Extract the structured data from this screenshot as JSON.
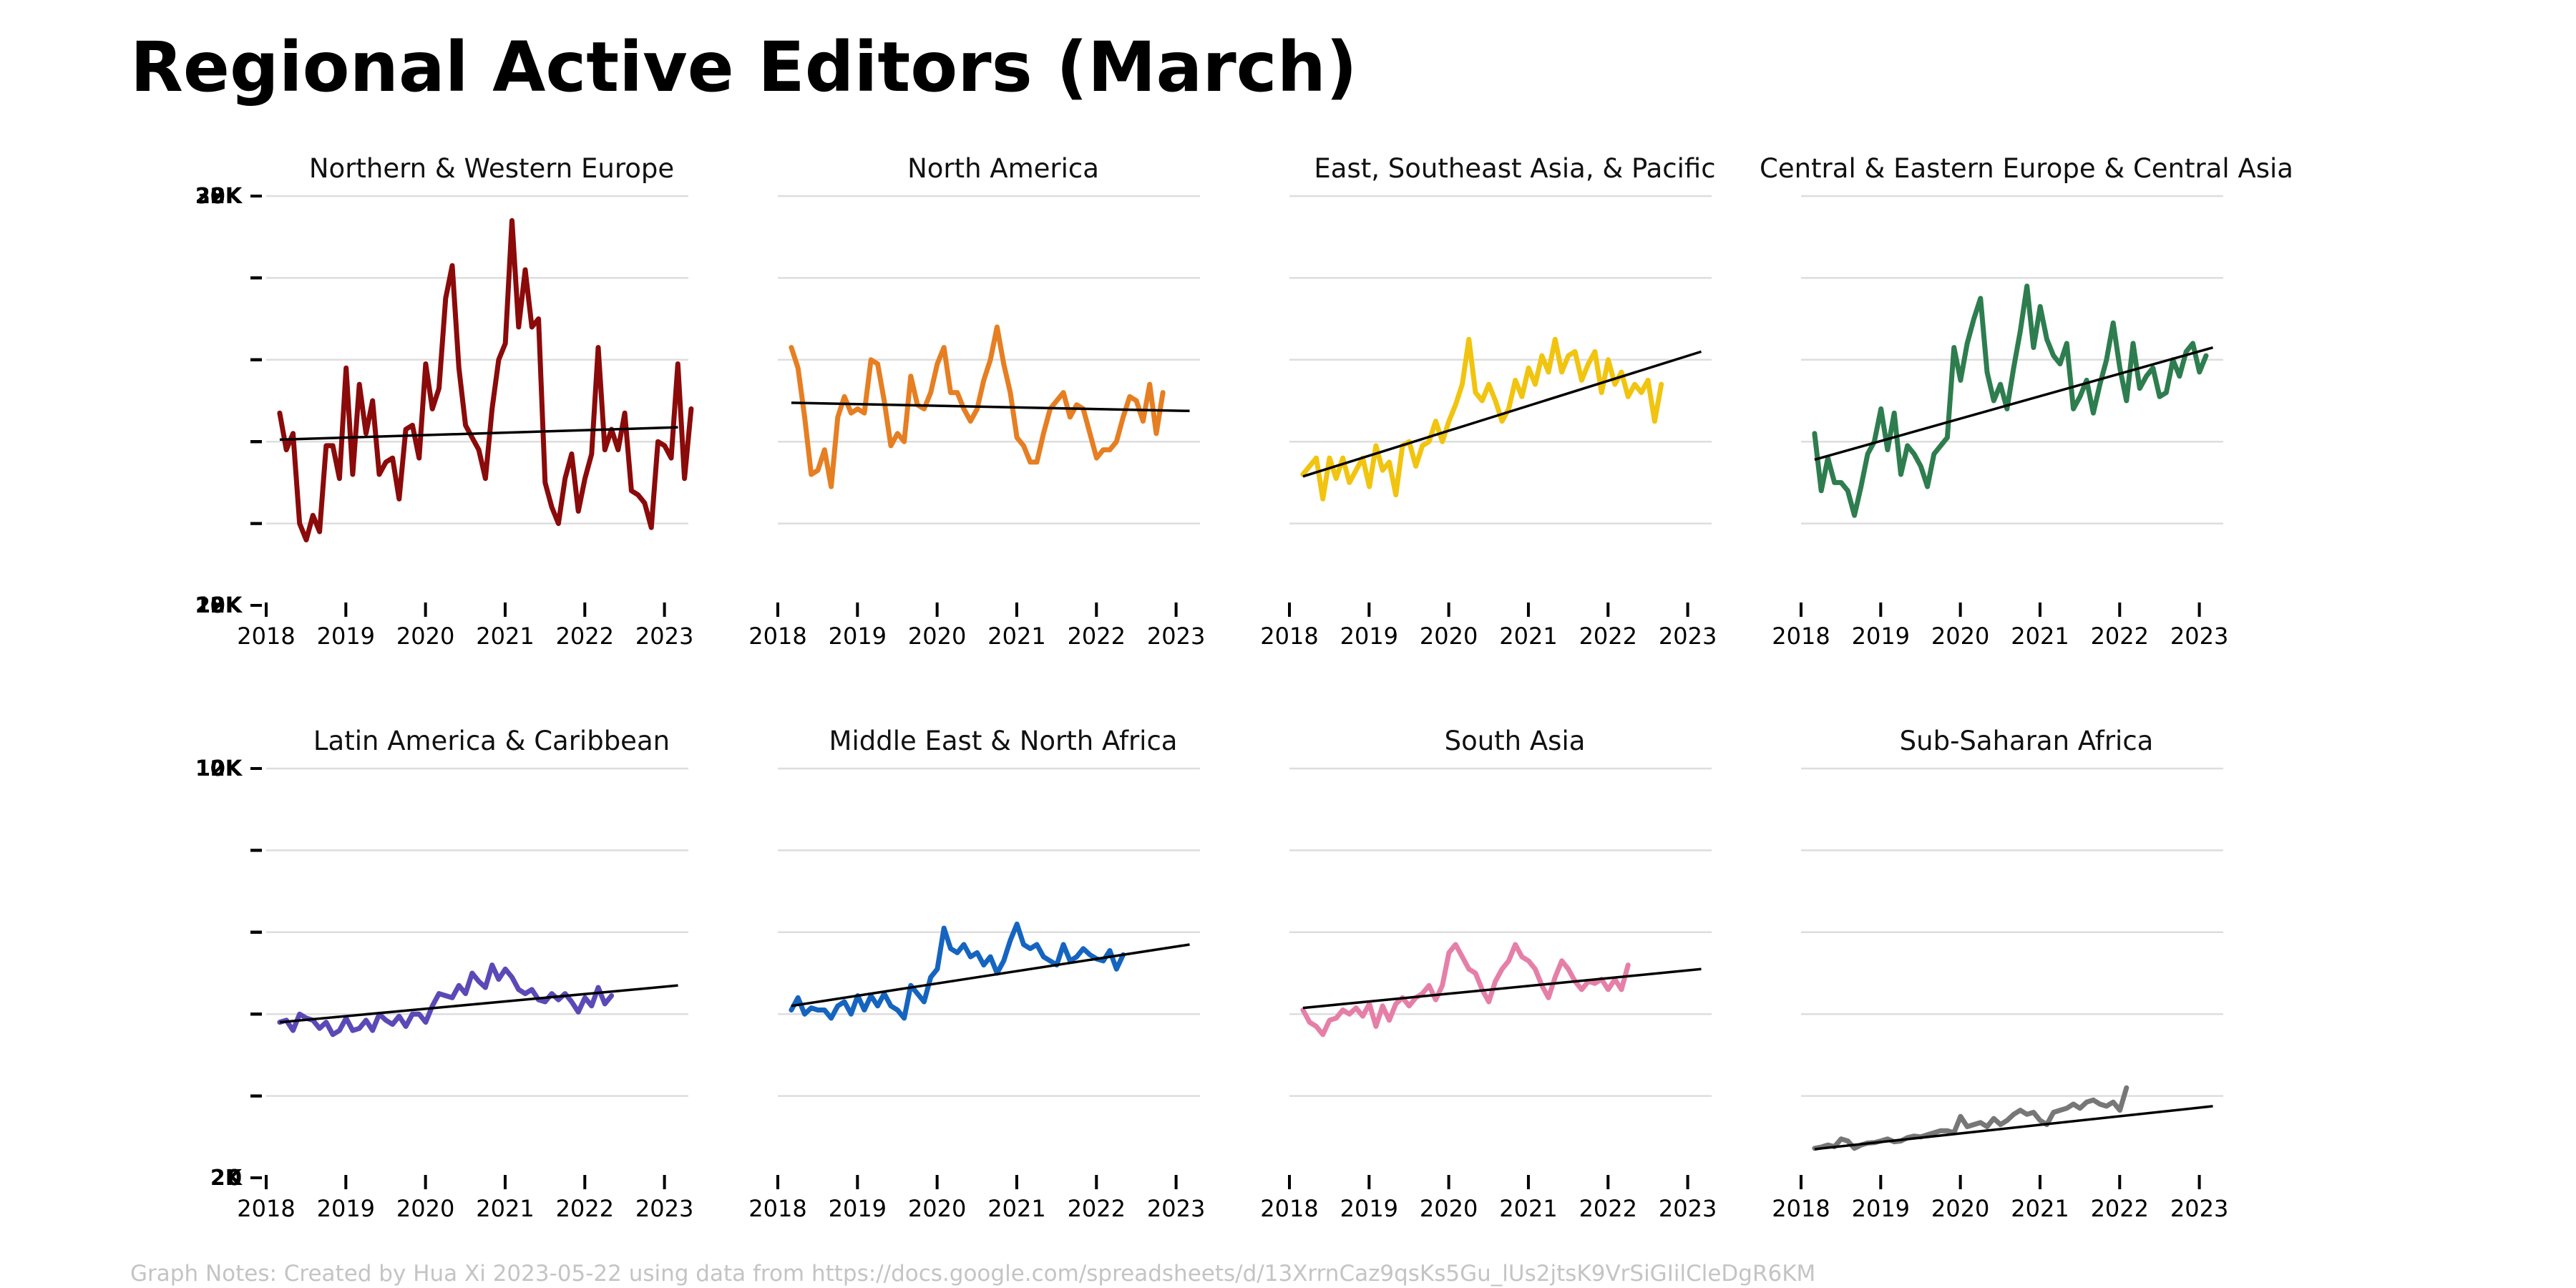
{
  "title": "Regional Active Editors (March)",
  "notes": "Graph Notes: Created by Hua Xi 2023-05-22 using data from https://docs.google.com/spreadsheets/d/13XrrnCaz9qsKs5Gu_lUs2jtsK9VrSiGIilCleDgR6KM",
  "chart_data": [
    {
      "type": "line",
      "title": "Northern & Western Europe",
      "color": "#8b0a0a",
      "ylim": [
        28000,
        38000
      ],
      "ytick_labels": [
        "38K",
        "28K"
      ],
      "xtick_labels": [
        "2018",
        "2019",
        "2020",
        "2021",
        "2022",
        "2023"
      ],
      "xlim": [
        2018,
        2023.3
      ],
      "grid": true,
      "series": [
        {
          "x_start": 2018.17,
          "x_step": 0.0833,
          "values": [
            32700,
            31800,
            32200,
            30000,
            29600,
            30200,
            29800,
            31900,
            31900,
            31100,
            33800,
            31200,
            33400,
            32200,
            33000,
            31200,
            31500,
            31600,
            30600,
            32300,
            32400,
            31600,
            33900,
            32800,
            33300,
            35500,
            36300,
            33800,
            32400,
            32100,
            31800,
            31100,
            32800,
            34000,
            34400,
            37400,
            34800,
            36200,
            34800,
            35000,
            31000,
            30400,
            30000,
            31100,
            31700,
            30300,
            31100,
            31700,
            34300,
            31800,
            32300,
            31800,
            32700,
            30800,
            30700,
            30500,
            29900,
            32000,
            31900,
            31600,
            33900,
            31100,
            32800
          ]
        }
      ],
      "trend": {
        "start": [
          2018.17,
          32050
        ],
        "end": [
          2023.17,
          32350
        ]
      }
    },
    {
      "type": "line",
      "title": "North America",
      "color": "#e67e22",
      "ylim": [
        12000,
        22000
      ],
      "ytick_labels": [
        "22K",
        "12K"
      ],
      "xtick_labels": [
        "2018",
        "2019",
        "2020",
        "2021",
        "2022",
        "2023"
      ],
      "xlim": [
        2018,
        2023.3
      ],
      "grid": true,
      "series": [
        {
          "x_start": 2018.17,
          "x_step": 0.0833,
          "values": [
            18300,
            17800,
            16600,
            15200,
            15300,
            15800,
            14900,
            16600,
            17100,
            16700,
            16800,
            16700,
            18000,
            17900,
            17000,
            15900,
            16200,
            16000,
            17600,
            16900,
            16800,
            17200,
            17900,
            18300,
            17200,
            17200,
            16800,
            16500,
            16800,
            17500,
            18000,
            18800,
            17900,
            17200,
            16100,
            15900,
            15500,
            15500,
            16200,
            16800,
            17000,
            17200,
            16600,
            16900,
            16800,
            16200,
            15600,
            15800,
            15800,
            16000,
            16600,
            17100,
            17000,
            16500,
            17400,
            16200,
            17200
          ]
        }
      ],
      "trend": {
        "start": [
          2018.17,
          16950
        ],
        "end": [
          2023.17,
          16750
        ]
      }
    },
    {
      "type": "line",
      "title": "East, Southeast Asia, & Pacific",
      "color": "#f1c40f",
      "ylim": [
        12000,
        22000
      ],
      "ytick_labels": [
        "22K",
        "12K"
      ],
      "xtick_labels": [
        "2018",
        "2019",
        "2020",
        "2021",
        "2022",
        "2023"
      ],
      "xlim": [
        2018,
        2023.3
      ],
      "grid": true,
      "series": [
        {
          "x_start": 2018.17,
          "x_step": 0.0833,
          "values": [
            15200,
            15400,
            15600,
            14600,
            15600,
            15100,
            15600,
            15000,
            15300,
            15600,
            14900,
            15900,
            15300,
            15500,
            14700,
            15900,
            16000,
            15400,
            15900,
            16000,
            16500,
            16000,
            16500,
            16900,
            17400,
            18500,
            17200,
            17000,
            17400,
            17000,
            16500,
            16800,
            17500,
            17100,
            17800,
            17400,
            18100,
            17700,
            18500,
            17700,
            18100,
            18200,
            17500,
            17900,
            18200,
            17200,
            18000,
            17400,
            17700,
            17100,
            17400,
            17200,
            17500,
            16500,
            17400
          ]
        }
      ],
      "trend": {
        "start": [
          2018.17,
          15150
        ],
        "end": [
          2023.17,
          18200
        ]
      }
    },
    {
      "type": "line",
      "title": "Central & Eastern Europe & Central Asia",
      "color": "#2e7d4f",
      "ylim": [
        10000,
        20000
      ],
      "ytick_labels": [
        "20K",
        "10K"
      ],
      "xtick_labels": [
        "2018",
        "2019",
        "2020",
        "2021",
        "2022",
        "2023"
      ],
      "xlim": [
        2018,
        2023.3
      ],
      "grid": true,
      "series": [
        {
          "x_start": 2018.17,
          "x_step": 0.0833,
          "values": [
            14200,
            12800,
            13600,
            13000,
            13000,
            12800,
            12200,
            12900,
            13700,
            14000,
            14800,
            13800,
            14700,
            13200,
            13900,
            13700,
            13400,
            12900,
            13700,
            13900,
            14100,
            16300,
            15500,
            16400,
            17000,
            17500,
            15700,
            15000,
            15400,
            14800,
            15800,
            16700,
            17800,
            16300,
            17300,
            16500,
            16100,
            15900,
            16400,
            14800,
            15100,
            15500,
            14700,
            15400,
            16000,
            16900,
            15800,
            15000,
            16400,
            15300,
            15600,
            15800,
            15100,
            15200,
            16000,
            15600,
            16200,
            16400,
            15700,
            16100
          ]
        }
      ],
      "trend": {
        "start": [
          2018.17,
          13560
        ],
        "end": [
          2023.17,
          16300
        ]
      }
    },
    {
      "type": "line",
      "title": "Latin America & Caribbean",
      "color": "#5b49b7",
      "ylim": [
        2000,
        12000
      ],
      "ytick_labels": [
        "12K",
        "2K"
      ],
      "xtick_labels": [
        "2018",
        "2019",
        "2020",
        "2021",
        "2022",
        "2023"
      ],
      "xlim": [
        2018,
        2023.3
      ],
      "grid": true,
      "series": [
        {
          "x_start": 2018.17,
          "x_step": 0.0833,
          "values": [
            5800,
            5850,
            5600,
            6000,
            5900,
            5850,
            5650,
            5800,
            5500,
            5600,
            5900,
            5600,
            5650,
            5850,
            5600,
            6000,
            5850,
            5750,
            5950,
            5700,
            6000,
            6000,
            5800,
            6200,
            6500,
            6450,
            6400,
            6700,
            6500,
            7000,
            6800,
            6650,
            7200,
            6850,
            7100,
            6900,
            6600,
            6500,
            6600,
            6350,
            6300,
            6500,
            6350,
            6500,
            6300,
            6050,
            6400,
            6200,
            6650,
            6250,
            6450
          ]
        }
      ],
      "trend": {
        "start": [
          2018.17,
          5800
        ],
        "end": [
          2023.17,
          6700
        ]
      }
    },
    {
      "type": "line",
      "title": "Middle East & North Africa",
      "color": "#1565c0",
      "ylim": [
        0,
        10000
      ],
      "ytick_labels": [
        "10K",
        "0"
      ],
      "xtick_labels": [
        "2018",
        "2019",
        "2020",
        "2021",
        "2022",
        "2023"
      ],
      "xlim": [
        2018,
        2023.3
      ],
      "grid": true,
      "series": [
        {
          "x_start": 2018.17,
          "x_step": 0.0833,
          "values": [
            4100,
            4400,
            4000,
            4150,
            4100,
            4100,
            3900,
            4200,
            4300,
            4000,
            4450,
            4100,
            4450,
            4200,
            4500,
            4200,
            4100,
            3900,
            4700,
            4500,
            4300,
            4900,
            5100,
            6100,
            5600,
            5500,
            5700,
            5400,
            5500,
            5200,
            5400,
            5000,
            5300,
            5800,
            6200,
            5700,
            5600,
            5700,
            5400,
            5300,
            5200,
            5700,
            5300,
            5400,
            5600,
            5450,
            5350,
            5300,
            5550,
            5100,
            5450
          ]
        }
      ],
      "trend": {
        "start": [
          2018.17,
          4200
        ],
        "end": [
          2023.17,
          5700
        ]
      }
    },
    {
      "type": "line",
      "title": "South Asia",
      "color": "#e57fa8",
      "ylim": [
        0,
        10000
      ],
      "ytick_labels": [
        "10K",
        "0"
      ],
      "xtick_labels": [
        "2018",
        "2019",
        "2020",
        "2021",
        "2022",
        "2023"
      ],
      "xlim": [
        2018,
        2023.3
      ],
      "grid": true,
      "series": [
        {
          "x_start": 2018.17,
          "x_step": 0.0833,
          "values": [
            4100,
            3800,
            3700,
            3500,
            3850,
            3900,
            4100,
            4000,
            4150,
            3950,
            4250,
            3700,
            4200,
            3850,
            4250,
            4400,
            4200,
            4400,
            4500,
            4700,
            4350,
            4700,
            5500,
            5700,
            5400,
            5100,
            5000,
            4600,
            4300,
            4800,
            5100,
            5300,
            5700,
            5400,
            5300,
            5100,
            4700,
            4400,
            4900,
            5300,
            5100,
            4800,
            4600,
            4800,
            4750,
            4850,
            4600,
            4850,
            4600,
            5200
          ]
        }
      ],
      "trend": {
        "start": [
          2018.17,
          4150
        ],
        "end": [
          2023.17,
          5100
        ]
      }
    },
    {
      "type": "line",
      "title": "Sub-Saharan Africa",
      "color": "#777777",
      "ylim": [
        0,
        10000
      ],
      "ytick_labels": [
        "10K",
        "0"
      ],
      "xtick_labels": [
        "2018",
        "2019",
        "2020",
        "2021",
        "2022",
        "2023"
      ],
      "xlim": [
        2018,
        2023.3
      ],
      "grid": true,
      "series": [
        {
          "x_start": 2018.17,
          "x_step": 0.0833,
          "values": [
            720,
            750,
            800,
            760,
            950,
            900,
            720,
            800,
            850,
            860,
            900,
            950,
            880,
            900,
            980,
            1020,
            1000,
            1050,
            1100,
            1150,
            1150,
            1100,
            1500,
            1250,
            1300,
            1350,
            1250,
            1450,
            1300,
            1400,
            1550,
            1650,
            1550,
            1600,
            1400,
            1300,
            1600,
            1650,
            1700,
            1800,
            1700,
            1850,
            1900,
            1800,
            1750,
            1850,
            1650,
            2200
          ]
        }
      ],
      "trend": {
        "start": [
          2018.17,
          700
        ],
        "end": [
          2023.17,
          1750
        ]
      }
    }
  ]
}
